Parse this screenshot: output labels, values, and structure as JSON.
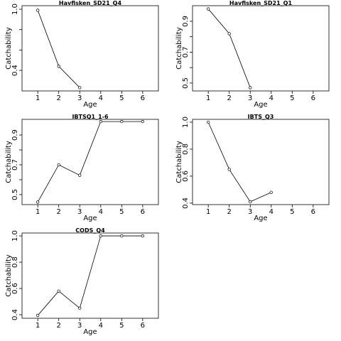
{
  "chart_data": [
    {
      "type": "line",
      "title": "Havfisken_SD21_Q4",
      "xlabel": "Age",
      "ylabel": "Catchability",
      "x": [
        1,
        2,
        3
      ],
      "values": [
        0.99,
        0.44,
        0.23
      ],
      "color": "#000000",
      "xlim": [
        0.25,
        6.75
      ],
      "xticks": [
        1,
        2,
        3,
        4,
        5,
        6
      ],
      "ylim": [
        0.198,
        1.035
      ],
      "yticks": [
        0.4,
        {
          "value": 1,
          "label": "1.0"
        }
      ],
      "yticks_minor": [
        0.6,
        0.8
      ]
    },
    {
      "type": "line",
      "title": "Havfisken_SD21_Q1",
      "xlabel": "Age",
      "ylabel": "Catchability",
      "x": [
        1,
        2,
        3
      ],
      "values": [
        0.98,
        0.82,
        0.47
      ],
      "color": "#000000",
      "xlim": [
        0.25,
        6.75
      ],
      "xticks": [
        1,
        2,
        3,
        4,
        5,
        6
      ],
      "ylim": [
        0.449,
        1.001
      ],
      "yticks": [
        0.5,
        0.7,
        0.9
      ],
      "yticks_minor": [
        0.6,
        0.8
      ]
    },
    {
      "type": "line",
      "title": "IBTSQ1_1-6",
      "xlabel": "Age",
      "ylabel": "Catchability",
      "x": [
        1,
        2,
        3,
        4,
        5,
        6
      ],
      "values": [
        0.45,
        0.7,
        0.63,
        0.99,
        0.99,
        0.99
      ],
      "color": "#000000",
      "xlim": [
        0.25,
        6.75
      ],
      "xticks": [
        1,
        2,
        3,
        4,
        5,
        6
      ],
      "ylim": [
        0.433,
        1.005
      ],
      "yticks": [
        0.5,
        0.7,
        0.9
      ],
      "yticks_minor": [
        0.6,
        0.8
      ]
    },
    {
      "type": "line",
      "title": "IBTS_Q3",
      "xlabel": "Age",
      "ylabel": "Catchability",
      "x": [
        1,
        2,
        3,
        4
      ],
      "values": [
        1.0,
        0.65,
        0.41,
        0.48
      ],
      "color": "#000000",
      "xlim": [
        0.25,
        6.75
      ],
      "xticks": [
        1,
        2,
        3,
        4,
        5,
        6
      ],
      "ylim": [
        0.389,
        1.021
      ],
      "yticks": [
        0.4,
        0.6,
        0.8,
        {
          "value": 1,
          "label": "1.0"
        }
      ],
      "yticks_minor": []
    },
    {
      "type": "line",
      "title": "CODS_Q4",
      "xlabel": "Age",
      "ylabel": "Catchability",
      "x": [
        1,
        2,
        3,
        4,
        5,
        6
      ],
      "values": [
        0.395,
        0.58,
        0.45,
        1.0,
        1.0,
        1.0
      ],
      "color": "#000000",
      "xlim": [
        0.25,
        6.75
      ],
      "xticks": [
        1,
        2,
        3,
        4,
        5,
        6
      ],
      "ylim": [
        0.373,
        1.022
      ],
      "yticks": [
        0.4,
        0.6,
        0.8,
        {
          "value": 1,
          "label": "1.0"
        }
      ],
      "yticks_minor": []
    }
  ]
}
